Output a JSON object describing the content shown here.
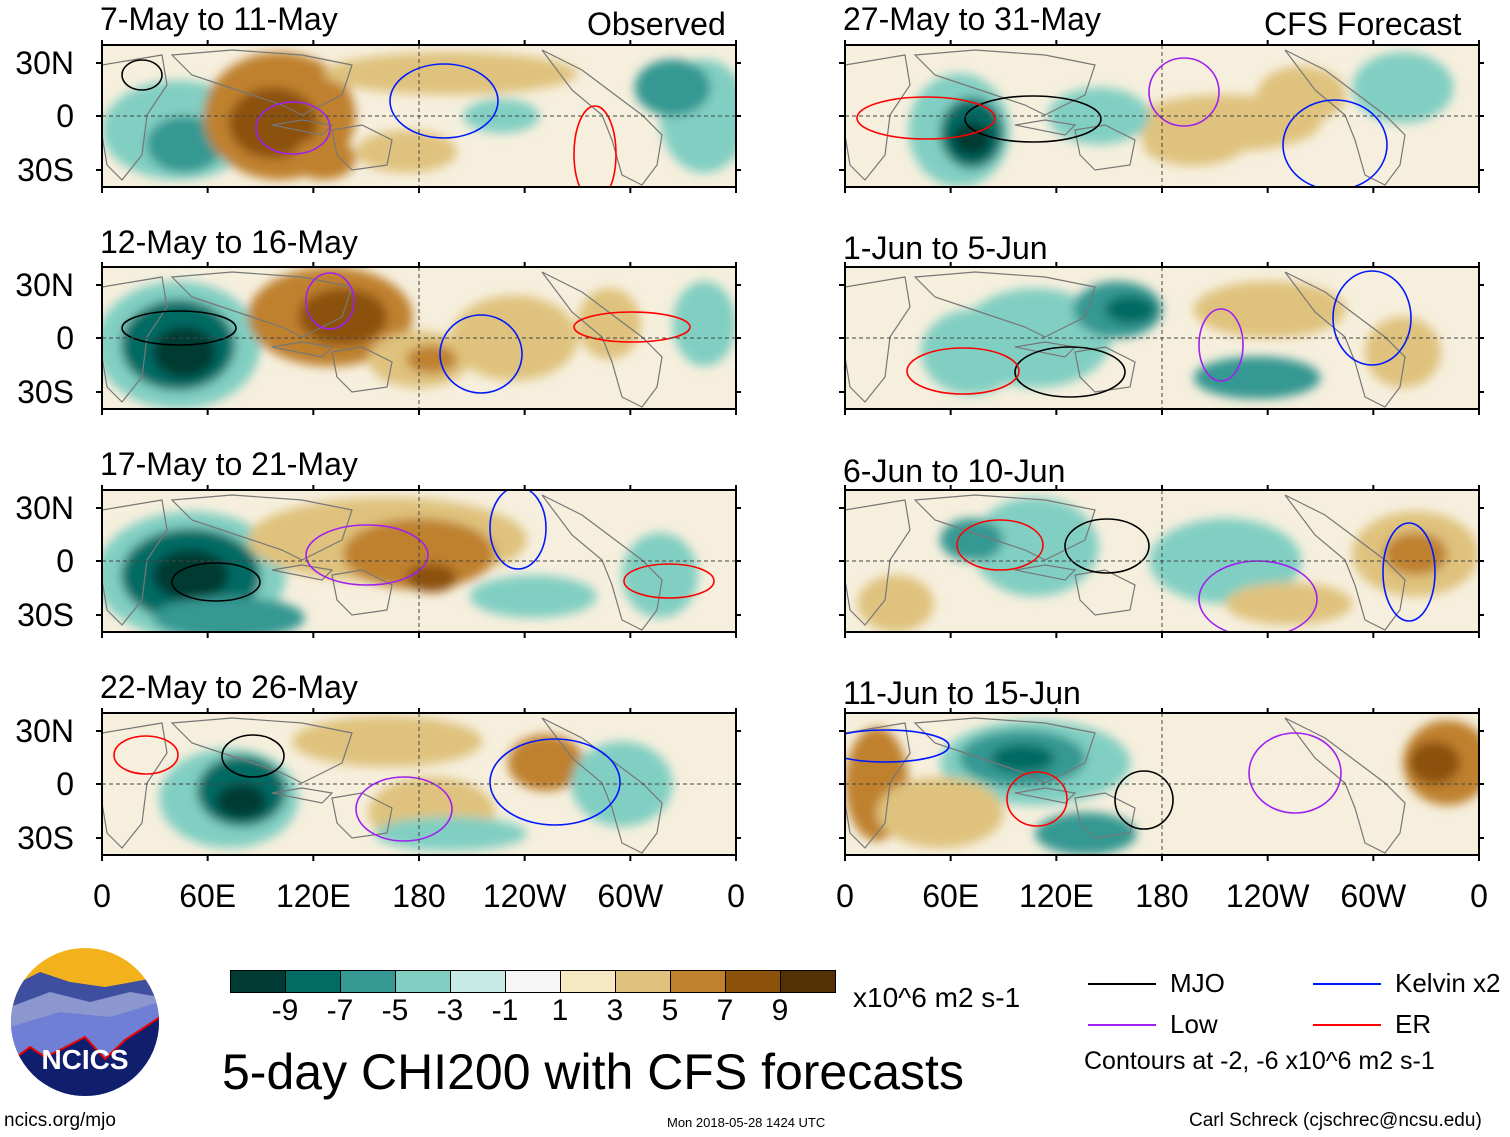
{
  "left_header": "Observed",
  "right_header": "CFS Forecast",
  "panels_left": [
    {
      "title": "7-May to 11-May"
    },
    {
      "title": "12-May to 16-May"
    },
    {
      "title": "17-May to 21-May"
    },
    {
      "title": "22-May to 26-May"
    }
  ],
  "panels_right": [
    {
      "title": "27-May to 31-May"
    },
    {
      "title": "1-Jun to 5-Jun"
    },
    {
      "title": "6-Jun to 10-Jun"
    },
    {
      "title": "11-Jun to 15-Jun"
    }
  ],
  "lat_labels": [
    "30N",
    "0",
    "30S"
  ],
  "lon_labels": [
    "0",
    "60E",
    "120E",
    "180",
    "120W",
    "60W",
    "0"
  ],
  "colorbar": {
    "labels": [
      "-9",
      "-7",
      "-5",
      "-3",
      "-1",
      "1",
      "3",
      "5",
      "7",
      "9"
    ],
    "colors": [
      "#003b33",
      "#026b63",
      "#369892",
      "#81cfc2",
      "#c8eae5",
      "#f6f6f6",
      "#f6e8c3",
      "#dfc27d",
      "#bf812d",
      "#8c510a",
      "#543005"
    ],
    "units": "x10^6 m2 s-1"
  },
  "legend": {
    "items": [
      {
        "label": "MJO",
        "color": "#000000"
      },
      {
        "label": "Kelvin x2",
        "color": "#0019ff"
      },
      {
        "label": "Low",
        "color": "#a020f0"
      },
      {
        "label": "ER",
        "color": "#ff0000"
      }
    ],
    "contours_note": "Contours at -2, -6 x10^6 m2 s-1"
  },
  "main_title": "5-day CHI200 with CFS forecasts",
  "logo_text": "NCICS",
  "website": "ncics.org/mjo",
  "timestamp": "Mon 2018-05-28 1424 UTC",
  "credit": "Carl Schreck (cjschrec@ncsu.edu)"
}
